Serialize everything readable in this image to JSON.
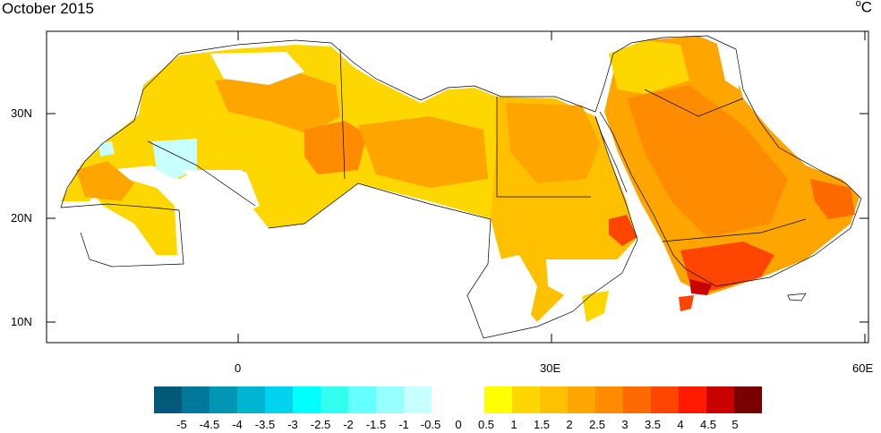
{
  "map": {
    "title": "October 2015",
    "unit_base": "o",
    "unit_symbol": "C",
    "lat_labels": [
      "30N",
      "20N",
      "10N"
    ],
    "lon_labels": [
      "0",
      "30E",
      "60E"
    ]
  },
  "colorbar": {
    "labels": [
      "-5",
      "-4.5",
      "-4",
      "-3.5",
      "-3",
      "-2.5",
      "-2",
      "-1.5",
      "-1",
      "-0.5",
      "0",
      "0.5",
      "1",
      "1.5",
      "2",
      "2.5",
      "3",
      "3.5",
      "4",
      "4.5",
      "5"
    ],
    "negative_colors": [
      "#005a78",
      "#00789a",
      "#0096b4",
      "#00b4d2",
      "#00d2f0",
      "#00ffff",
      "#32fff0",
      "#64ffff",
      "#96ffff",
      "#c8ffff"
    ],
    "positive_colors": [
      "#ffff00",
      "#ffd700",
      "#ffc000",
      "#ffa500",
      "#ff8c00",
      "#ff6a00",
      "#ff4500",
      "#ff1a00",
      "#c80000",
      "#7a0000"
    ]
  }
}
